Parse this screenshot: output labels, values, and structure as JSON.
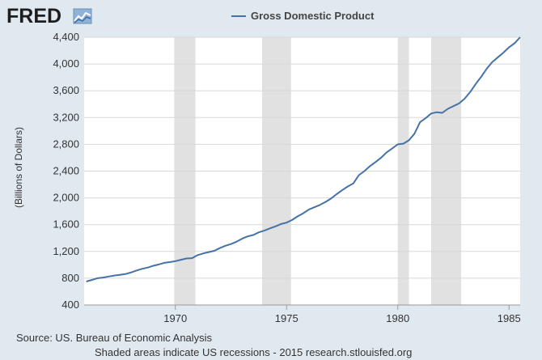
{
  "header": {
    "logo_text": "FRED",
    "logo_icon": "line-chart-icon"
  },
  "footer": {
    "source": "Source: US. Bureau of Economic Analysis",
    "note": "Shaded areas indicate US recessions - 2015 research.stlouisfed.org"
  },
  "colors": {
    "series": "#4572a7",
    "recession": "#e1e1e1",
    "background": "#e1e9f0"
  },
  "chart_data": {
    "type": "line",
    "title": "",
    "xlabel": "",
    "ylabel": "(Billions of Dollars)",
    "xlim": [
      1965.9,
      1985.5
    ],
    "ylim": [
      400,
      4400
    ],
    "x_ticks": [
      1970,
      1975,
      1980,
      1985
    ],
    "x_tick_labels": [
      "1970",
      "1975",
      "1980",
      "1985"
    ],
    "y_ticks": [
      400,
      800,
      1200,
      1600,
      2000,
      2400,
      2800,
      3200,
      3600,
      4000,
      4400
    ],
    "y_tick_labels": [
      "400",
      "800",
      "1,200",
      "1,600",
      "2,000",
      "2,400",
      "2,800",
      "3,200",
      "3,600",
      "4,000",
      "4,400"
    ],
    "grid": true,
    "legend_position": "top-center",
    "recessions": [
      {
        "start": 1969.95,
        "end": 1970.9
      },
      {
        "start": 1973.9,
        "end": 1975.2
      },
      {
        "start": 1980.0,
        "end": 1980.5
      },
      {
        "start": 1981.5,
        "end": 1982.85
      }
    ],
    "series": [
      {
        "name": "Gross Domestic Product",
        "x": [
          1966.0,
          1966.25,
          1966.5,
          1966.75,
          1967.0,
          1967.25,
          1967.5,
          1967.75,
          1968.0,
          1968.25,
          1968.5,
          1968.75,
          1969.0,
          1969.25,
          1969.5,
          1969.75,
          1970.0,
          1970.25,
          1970.5,
          1970.75,
          1971.0,
          1971.25,
          1971.5,
          1971.75,
          1972.0,
          1972.25,
          1972.5,
          1972.75,
          1973.0,
          1973.25,
          1973.5,
          1973.75,
          1974.0,
          1974.25,
          1974.5,
          1974.75,
          1975.0,
          1975.25,
          1975.5,
          1975.75,
          1976.0,
          1976.25,
          1976.5,
          1976.75,
          1977.0,
          1977.25,
          1977.5,
          1977.75,
          1978.0,
          1978.25,
          1978.5,
          1978.75,
          1979.0,
          1979.25,
          1979.5,
          1979.75,
          1980.0,
          1980.25,
          1980.5,
          1980.75,
          1981.0,
          1981.25,
          1981.5,
          1981.75,
          1982.0,
          1982.25,
          1982.5,
          1982.75,
          1983.0,
          1983.25,
          1983.5,
          1983.75,
          1984.0,
          1984.25,
          1984.5,
          1984.75,
          1985.0,
          1985.25,
          1985.5
        ],
        "values": [
          750,
          775,
          800,
          810,
          825,
          840,
          850,
          862,
          885,
          915,
          940,
          958,
          985,
          1005,
          1030,
          1040,
          1055,
          1075,
          1095,
          1100,
          1145,
          1170,
          1190,
          1210,
          1250,
          1285,
          1310,
          1345,
          1390,
          1425,
          1445,
          1485,
          1510,
          1545,
          1575,
          1610,
          1630,
          1670,
          1725,
          1770,
          1825,
          1860,
          1895,
          1940,
          1990,
          2055,
          2115,
          2170,
          2215,
          2340,
          2400,
          2475,
          2535,
          2600,
          2680,
          2740,
          2800,
          2810,
          2860,
          2960,
          3130,
          3190,
          3260,
          3280,
          3270,
          3330,
          3370,
          3410,
          3480,
          3580,
          3700,
          3810,
          3930,
          4030,
          4100,
          4170,
          4250,
          4310,
          4400
        ]
      }
    ]
  }
}
